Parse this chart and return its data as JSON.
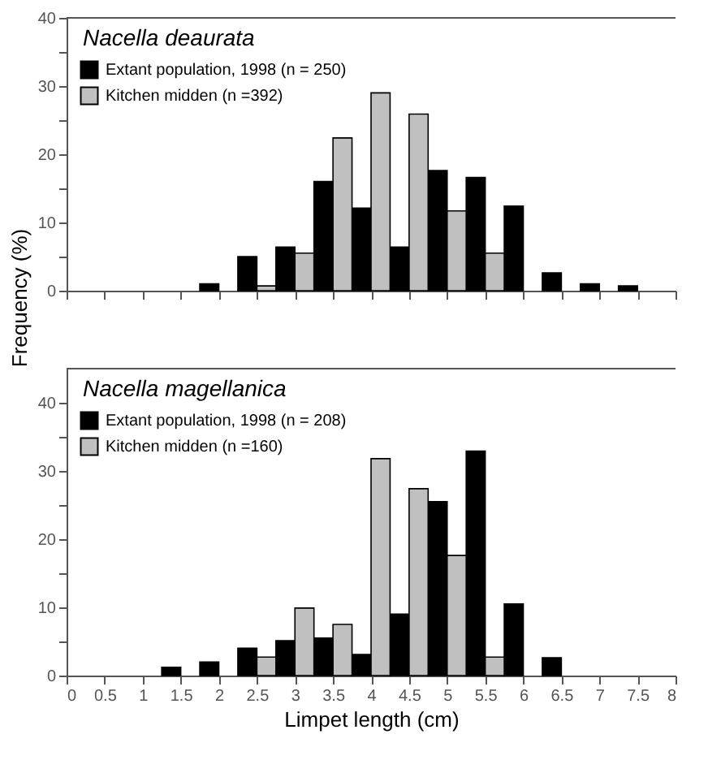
{
  "chart_data": [
    {
      "type": "bar",
      "title": "Nacella deaurata",
      "ylabel": "Frequency (%)",
      "x": [
        2,
        2.5,
        3,
        3.5,
        4,
        4.5,
        5,
        5.5,
        6,
        6.5,
        7,
        7.5
      ],
      "series": [
        {
          "name": "Extant population, 1998 (n = 250)",
          "color": "#000000",
          "values": [
            1.0,
            5.0,
            6.4,
            16.0,
            12.1,
            6.4,
            17.6,
            16.6,
            12.4,
            2.6,
            1.0,
            0.7
          ]
        },
        {
          "name": "Kitchen midden (n =392)",
          "color": "#c0c0c0",
          "values": [
            null,
            0.7,
            5.5,
            22.4,
            29.0,
            25.9,
            11.7,
            5.5,
            null,
            null,
            null,
            null
          ]
        }
      ],
      "xlim": [
        0,
        8
      ],
      "xticks": [
        0,
        0.5,
        1,
        1.5,
        2,
        2.5,
        3,
        3.5,
        4,
        4.5,
        5,
        5.5,
        6,
        6.5,
        7,
        7.5,
        8
      ],
      "ylim": [
        0,
        40
      ],
      "yticks": [
        0,
        {
          "value": 5,
          "label": null
        },
        10,
        {
          "value": 15,
          "label": null
        },
        20,
        {
          "value": 25,
          "label": null
        },
        30,
        {
          "value": 35,
          "label": null
        },
        40
      ],
      "tick_labels": "y",
      "legend": "top left",
      "grid": false
    },
    {
      "type": "bar",
      "title": "Nacella magellanica",
      "xlabel": "Limpet length (cm)",
      "x": [
        1.5,
        2,
        2.5,
        3,
        3.5,
        4,
        4.5,
        5,
        5.5,
        6,
        6.5
      ],
      "series": [
        {
          "name": "Extant population, 1998 (n = 208)",
          "color": "#000000",
          "values": [
            1.2,
            2.0,
            4.0,
            5.1,
            5.5,
            3.1,
            9.0,
            25.5,
            32.9,
            10.5,
            2.6
          ]
        },
        {
          "name": "Kitchen midden (n =160)",
          "color": "#c0c0c0",
          "values": [
            null,
            null,
            2.7,
            9.9,
            7.5,
            31.8,
            27.4,
            17.6,
            2.7,
            null,
            null
          ]
        }
      ],
      "xlim": [
        0,
        8
      ],
      "xticks": [
        0,
        0.5,
        1,
        1.5,
        2,
        2.5,
        3,
        3.5,
        4,
        4.5,
        5,
        5.5,
        6,
        6.5,
        7,
        7.5,
        8
      ],
      "ylim": [
        0,
        45
      ],
      "yticks": [
        0,
        {
          "value": 5,
          "label": null
        },
        10,
        {
          "value": 15,
          "label": null
        },
        20,
        {
          "value": 25,
          "label": null
        },
        30,
        {
          "value": 35,
          "label": null
        },
        40
      ],
      "legend": "top left",
      "grid": false
    }
  ]
}
